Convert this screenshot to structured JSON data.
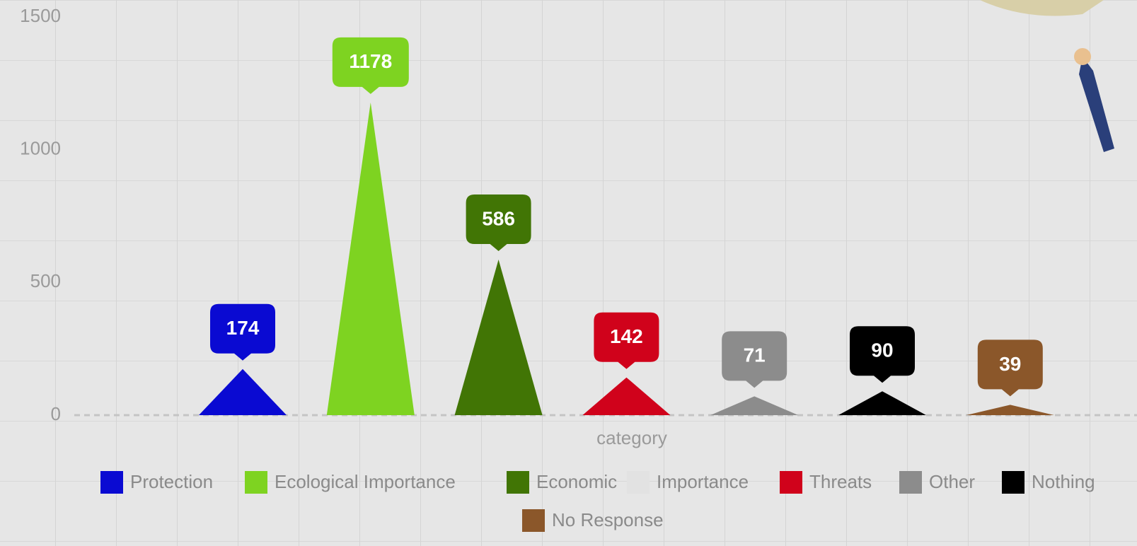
{
  "chart_data": {
    "type": "bar",
    "shape": "triangle",
    "x_label": "category",
    "ylim": [
      0,
      1500
    ],
    "yticks": [
      0,
      500,
      1000,
      1500
    ],
    "series": [
      {
        "name": "Protection",
        "color": "#0a0ad2",
        "values": [
          174
        ]
      },
      {
        "name": "Ecological Importance",
        "color": "#7ed321",
        "values": [
          1178
        ]
      },
      {
        "name": "Economic",
        "color": "#417505",
        "values": [
          586
        ]
      },
      {
        "name": "Importance",
        "color": "#e2e2e2",
        "values": [
          null
        ]
      },
      {
        "name": "Threats",
        "color": "#d0021b",
        "values": [
          142
        ]
      },
      {
        "name": "Other",
        "color": "#8c8c8c",
        "values": [
          71
        ]
      },
      {
        "name": "Nothing",
        "color": "#000000",
        "values": [
          90
        ]
      },
      {
        "name": "No Response",
        "color": "#8b572a",
        "values": [
          39
        ]
      }
    ]
  }
}
